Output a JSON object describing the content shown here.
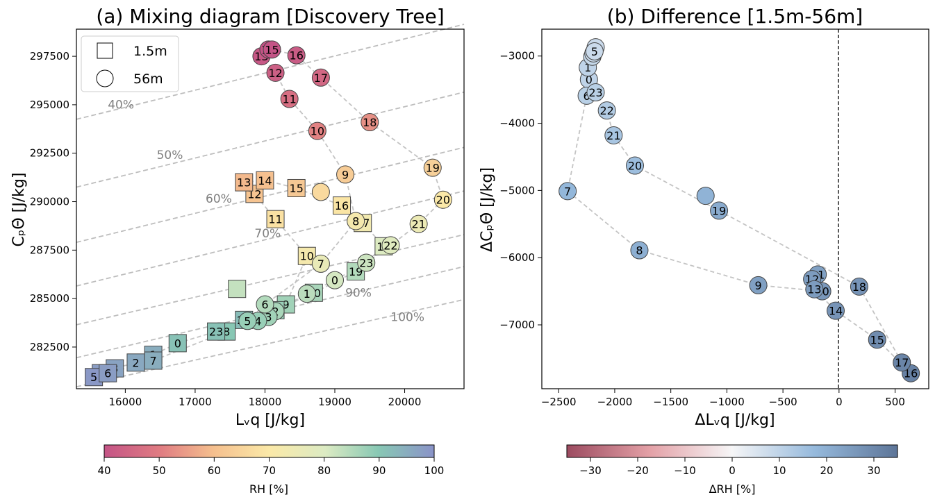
{
  "figure": {
    "panel_a_title": "(a) Mixing diagram [Discovery Tree]",
    "panel_b_title": "(b) Difference [1.5m-56m]",
    "a_xlabel": "Lᵥq [J/kg]",
    "a_ylabel": "CₚΘ̇ [J/kg]",
    "b_xlabel": "ΔLᵥq [J/kg]",
    "b_ylabel": "ΔCₚΘ̇ [J/kg]",
    "cb_a_label": "RH [%]",
    "cb_b_label": "ΔRH [%]",
    "legend": [
      {
        "marker": "square",
        "label": "1.5m"
      },
      {
        "marker": "circle",
        "label": "56m"
      }
    ]
  },
  "chart_data": [
    {
      "type": "scatter",
      "title": "(a) Mixing diagram [Discovery Tree]",
      "xlabel": "Lᵥq [J/kg]",
      "ylabel": "CₚΘ̇ [J/kg]",
      "xlim": [
        15300,
        20850
      ],
      "ylim": [
        280350,
        298900
      ],
      "xticks": [
        16000,
        17000,
        18000,
        19000,
        20000
      ],
      "yticks": [
        282500,
        285000,
        287500,
        290000,
        292500,
        295000,
        297500
      ],
      "legend_position": "top-left",
      "grid": false,
      "colorbar": {
        "label": "RH [%]",
        "range": [
          40,
          100
        ],
        "ticks": [
          40,
          50,
          60,
          70,
          80,
          90,
          100
        ]
      },
      "rh_isolines": [
        {
          "label": "40%",
          "x0": 15300,
          "y0": 294250,
          "x1": 20850,
          "y1": 299150,
          "lx": 15750,
          "ly": 294800
        },
        {
          "label": "50%",
          "x0": 15300,
          "y0": 290750,
          "x1": 20850,
          "y1": 295650,
          "lx": 16450,
          "ly": 292200
        },
        {
          "label": "60%",
          "x0": 15300,
          "y0": 287900,
          "x1": 20850,
          "y1": 292800,
          "lx": 17150,
          "ly": 289950
        },
        {
          "label": "70%",
          "x0": 15300,
          "y0": 285650,
          "x1": 20850,
          "y1": 290550,
          "lx": 17850,
          "ly": 288150
        },
        {
          "label": "80%",
          "x0": 15300,
          "y0": 283650,
          "x1": 20850,
          "y1": 288300,
          "lx": 18500,
          "ly": 286700
        },
        {
          "label": "90%",
          "x0": 15300,
          "y0": 281950,
          "x1": 20850,
          "y1": 286650,
          "lx": 19150,
          "ly": 285100
        },
        {
          "label": "100%",
          "x0": 15300,
          "y0": 280450,
          "x1": 20850,
          "y1": 284950,
          "lx": 19800,
          "ly": 283850
        }
      ],
      "series": [
        {
          "name": "1.5m",
          "marker": "square",
          "points": [
            {
              "label": "0",
              "x": 16750,
              "y": 282700,
              "rh": 91
            },
            {
              "label": "1",
              "x": 16400,
              "y": 282100,
              "rh": 95
            },
            {
              "label": "2",
              "x": 16150,
              "y": 281700,
              "rh": 96
            },
            {
              "label": "3",
              "x": 15850,
              "y": 281400,
              "rh": 97
            },
            {
              "label": "4",
              "x": 15650,
              "y": 281150,
              "rh": 98
            },
            {
              "label": "5",
              "x": 15550,
              "y": 280950,
              "rh": 99
            },
            {
              "label": "6",
              "x": 15750,
              "y": 281150,
              "rh": 98
            },
            {
              "label": "7",
              "x": 16400,
              "y": 281800,
              "rh": 95
            },
            {
              "label": "8",
              "x": 17450,
              "y": 283300,
              "rh": 90
            },
            {
              "label": "9",
              "x": 18300,
              "y": 284700,
              "rh": 87
            },
            {
              "label": "10",
              "x": 18600,
              "y": 287200,
              "rh": 72
            },
            {
              "label": "11",
              "x": 18150,
              "y": 289100,
              "rh": 68
            },
            {
              "label": "12",
              "x": 17850,
              "y": 290400,
              "rh": 61
            },
            {
              "label": "13",
              "x": 17700,
              "y": 291000,
              "rh": 59
            },
            {
              "label": "14",
              "x": 18000,
              "y": 291100,
              "rh": 60
            },
            {
              "label": "15",
              "x": 18450,
              "y": 290700,
              "rh": 62
            },
            {
              "label": "16",
              "x": 19100,
              "y": 289800,
              "rh": 69
            },
            {
              "label": "17",
              "x": 19400,
              "y": 288900,
              "rh": 73
            },
            {
              "label": "18",
              "x": 19700,
              "y": 287700,
              "rh": 80
            },
            {
              "label": "19",
              "x": 19300,
              "y": 286400,
              "rh": 85
            },
            {
              "label": "20",
              "x": 18700,
              "y": 285300,
              "rh": 86
            },
            {
              "label": "21",
              "x": 18150,
              "y": 284400,
              "rh": 88
            },
            {
              "label": "22",
              "x": 17700,
              "y": 283900,
              "rh": 92
            },
            {
              "label": "23",
              "x": 17300,
              "y": 283300,
              "rh": 91
            },
            {
              "label": "",
              "x": 17600,
              "y": 285500,
              "rh": 83
            }
          ]
        },
        {
          "name": "56m",
          "marker": "circle",
          "points": [
            {
              "label": "0",
              "x": 19000,
              "y": 285950,
              "rh": 81
            },
            {
              "label": "1",
              "x": 18600,
              "y": 285250,
              "rh": 84
            },
            {
              "label": "2",
              "x": 18150,
              "y": 284350,
              "rh": 86
            },
            {
              "label": "3",
              "x": 18050,
              "y": 284050,
              "rh": 87
            },
            {
              "label": "4",
              "x": 17900,
              "y": 283850,
              "rh": 88
            },
            {
              "label": "5",
              "x": 17750,
              "y": 283850,
              "rh": 88
            },
            {
              "label": "6",
              "x": 18000,
              "y": 284700,
              "rh": 85
            },
            {
              "label": "7",
              "x": 18800,
              "y": 286800,
              "rh": 76
            },
            {
              "label": "8",
              "x": 19300,
              "y": 289000,
              "rh": 72
            },
            {
              "label": "9",
              "x": 19150,
              "y": 291400,
              "rh": 63
            },
            {
              "label": "10",
              "x": 18750,
              "y": 293650,
              "rh": 51
            },
            {
              "label": "11",
              "x": 18350,
              "y": 295300,
              "rh": 47
            },
            {
              "label": "12",
              "x": 18150,
              "y": 296650,
              "rh": 43
            },
            {
              "label": "13",
              "x": 17950,
              "y": 297500,
              "rh": 41
            },
            {
              "label": "14",
              "x": 18050,
              "y": 297850,
              "rh": 40
            },
            {
              "label": "15",
              "x": 18100,
              "y": 297850,
              "rh": 40
            },
            {
              "label": "16",
              "x": 18450,
              "y": 297550,
              "rh": 42
            },
            {
              "label": "17",
              "x": 18800,
              "y": 296400,
              "rh": 45
            },
            {
              "label": "18",
              "x": 19500,
              "y": 294100,
              "rh": 53
            },
            {
              "label": "19",
              "x": 20400,
              "y": 291750,
              "rh": 64
            },
            {
              "label": "20",
              "x": 20550,
              "y": 290100,
              "rh": 70
            },
            {
              "label": "21",
              "x": 20200,
              "y": 288850,
              "rh": 75
            },
            {
              "label": "22",
              "x": 19800,
              "y": 287750,
              "rh": 79
            },
            {
              "label": "23",
              "x": 19450,
              "y": 286850,
              "rh": 82
            },
            {
              "label": "",
              "x": 18800,
              "y": 290500,
              "rh": 66
            }
          ]
        }
      ]
    },
    {
      "type": "scatter",
      "title": "(b) Difference [1.5m-56m]",
      "xlabel": "ΔLᵥq [J/kg]",
      "ylabel": "ΔCₚΘ̇ [J/kg]",
      "xlim": [
        -2650,
        800
      ],
      "ylim": [
        -7950,
        -2600
      ],
      "xticks": [
        -2500,
        -2000,
        -1500,
        -1000,
        -500,
        0,
        500
      ],
      "yticks": [
        -7000,
        -6000,
        -5000,
        -4000,
        -3000
      ],
      "vline_x": 0,
      "grid": false,
      "colorbar": {
        "label": "ΔRH [%]",
        "range": [
          -35,
          35
        ],
        "ticks": [
          -30,
          -20,
          -10,
          0,
          10,
          20,
          30
        ]
      },
      "series": [
        {
          "name": "",
          "marker": "circle",
          "points": [
            {
              "label": "0",
              "x": -2230,
              "y": -3350,
              "drh": 10
            },
            {
              "label": "1",
              "x": -2240,
              "y": -3170,
              "drh": 10
            },
            {
              "label": "2",
              "x": -2200,
              "y": -3010,
              "drh": 9
            },
            {
              "label": "3",
              "x": -2190,
              "y": -2960,
              "drh": 8
            },
            {
              "label": "4",
              "x": -2170,
              "y": -2870,
              "drh": 8
            },
            {
              "label": "5",
              "x": -2180,
              "y": -2930,
              "drh": 8
            },
            {
              "label": "6",
              "x": -2250,
              "y": -3590,
              "drh": 11
            },
            {
              "label": "7",
              "x": -2420,
              "y": -5010,
              "drh": 18
            },
            {
              "label": "8",
              "x": -1780,
              "y": -5890,
              "drh": 20
            },
            {
              "label": "9",
              "x": -720,
              "y": -6410,
              "drh": 24
            },
            {
              "label": "10",
              "x": -150,
              "y": -6500,
              "drh": 26
            },
            {
              "label": "11",
              "x": -190,
              "y": -6250,
              "drh": 24
            },
            {
              "label": "12",
              "x": -240,
              "y": -6320,
              "drh": 25
            },
            {
              "label": "13",
              "x": -220,
              "y": -6470,
              "drh": 25
            },
            {
              "label": "14",
              "x": -30,
              "y": -6790,
              "drh": 27
            },
            {
              "label": "15",
              "x": 340,
              "y": -7220,
              "drh": 29
            },
            {
              "label": "16",
              "x": 640,
              "y": -7720,
              "drh": 32
            },
            {
              "label": "17",
              "x": 560,
              "y": -7560,
              "drh": 31
            },
            {
              "label": "18",
              "x": 180,
              "y": -6430,
              "drh": 27
            },
            {
              "label": "19",
              "x": -1070,
              "y": -5300,
              "drh": 21
            },
            {
              "label": "20",
              "x": -1820,
              "y": -4630,
              "drh": 16
            },
            {
              "label": "21",
              "x": -2010,
              "y": -4180,
              "drh": 14
            },
            {
              "label": "22",
              "x": -2070,
              "y": -3810,
              "drh": 12
            },
            {
              "label": "23",
              "x": -2170,
              "y": -3540,
              "drh": 11
            },
            {
              "label": "",
              "x": -1190,
              "y": -5080,
              "drh": 19
            }
          ]
        }
      ]
    }
  ]
}
